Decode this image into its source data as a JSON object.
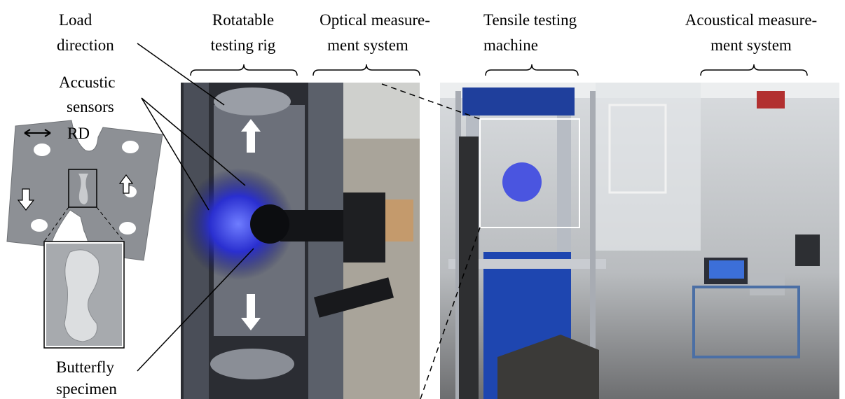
{
  "labels": {
    "load_direction": [
      "Load",
      "direction"
    ],
    "acoustic_sensors": [
      "Accustic",
      "sensors"
    ],
    "rolling_direction": "RD",
    "butterfly_specimen": [
      "Butterfly",
      "specimen"
    ],
    "rotatable_rig": [
      "Rotatable",
      "testing rig"
    ],
    "optical_system": [
      "Optical measure-",
      "ment system"
    ],
    "tensile_machine": [
      "Tensile testing",
      "machine"
    ],
    "acoustical_system": [
      "Acoustical measure-",
      "ment system"
    ]
  }
}
